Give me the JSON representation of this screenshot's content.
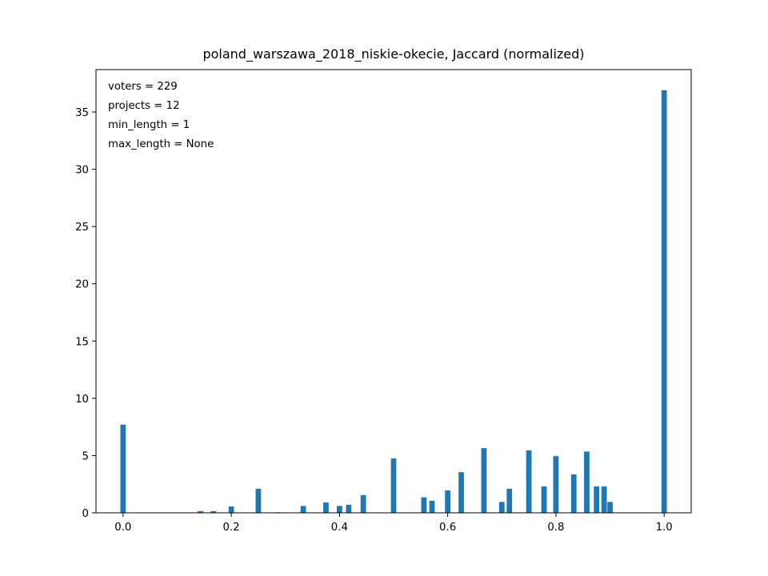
{
  "chart_data": {
    "type": "bar",
    "title": "poland_warszawa_2018_niskie-okecie, Jaccard (normalized)",
    "xlabel": "",
    "ylabel": "",
    "xlim": [
      -0.05,
      1.05
    ],
    "ylim": [
      0,
      38.7
    ],
    "x_ticks": [
      0.0,
      0.2,
      0.4,
      0.6,
      0.8,
      1.0
    ],
    "x_tick_labels": [
      "0.0",
      "0.2",
      "0.4",
      "0.6",
      "0.8",
      "1.0"
    ],
    "y_ticks": [
      0,
      5,
      10,
      15,
      20,
      25,
      30,
      35
    ],
    "y_tick_labels": [
      "0",
      "5",
      "10",
      "15",
      "20",
      "25",
      "30",
      "35"
    ],
    "annotations": [
      "voters = 229",
      "projects = 12",
      "min_length = 1",
      "max_length = None"
    ],
    "bar_width": 0.01,
    "x": [
      0.0,
      0.143,
      0.167,
      0.2,
      0.25,
      0.286,
      0.333,
      0.375,
      0.4,
      0.417,
      0.444,
      0.5,
      0.556,
      0.571,
      0.6,
      0.625,
      0.667,
      0.7,
      0.714,
      0.75,
      0.778,
      0.8,
      0.833,
      0.857,
      0.875,
      0.889,
      0.9,
      1.0
    ],
    "values": [
      7.7,
      0.15,
      0.15,
      0.55,
      2.1,
      0.05,
      0.6,
      0.9,
      0.6,
      0.7,
      1.55,
      4.75,
      1.35,
      1.05,
      1.95,
      3.55,
      5.65,
      0.95,
      2.1,
      5.45,
      2.3,
      4.95,
      3.35,
      5.35,
      2.3,
      2.3,
      0.95,
      36.9
    ],
    "color": "#1f77b4"
  }
}
